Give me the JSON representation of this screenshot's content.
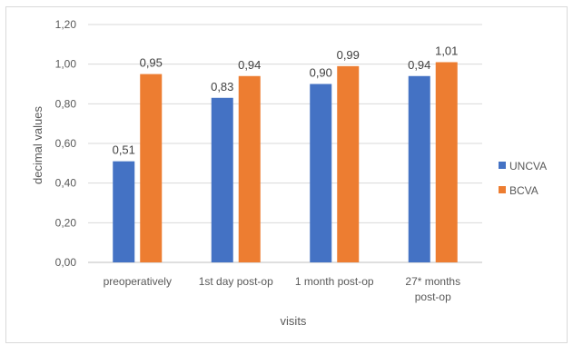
{
  "chart_data": {
    "type": "bar",
    "title": "",
    "xlabel": "visits",
    "ylabel": "decimal values",
    "ylim": [
      0,
      1.2
    ],
    "yticks": [
      "0,00",
      "0,20",
      "0,40",
      "0,60",
      "0,80",
      "1,00",
      "1,20"
    ],
    "categories": [
      [
        "preoperatively"
      ],
      [
        "1st day post-op"
      ],
      [
        "1 month post-op"
      ],
      [
        "27* months",
        "post-op"
      ]
    ],
    "series": [
      {
        "name": "UNCVA",
        "color": "#4472c4",
        "values": [
          0.51,
          0.83,
          0.9,
          0.94
        ],
        "labels": [
          "0,51",
          "0,83",
          "0,90",
          "0,94"
        ]
      },
      {
        "name": "BCVA",
        "color": "#ed7d31",
        "values": [
          0.95,
          0.94,
          0.99,
          1.01
        ],
        "labels": [
          "0,95",
          "0,94",
          "0,99",
          "1,01"
        ]
      }
    ],
    "grid": true,
    "legend_position": "right"
  }
}
